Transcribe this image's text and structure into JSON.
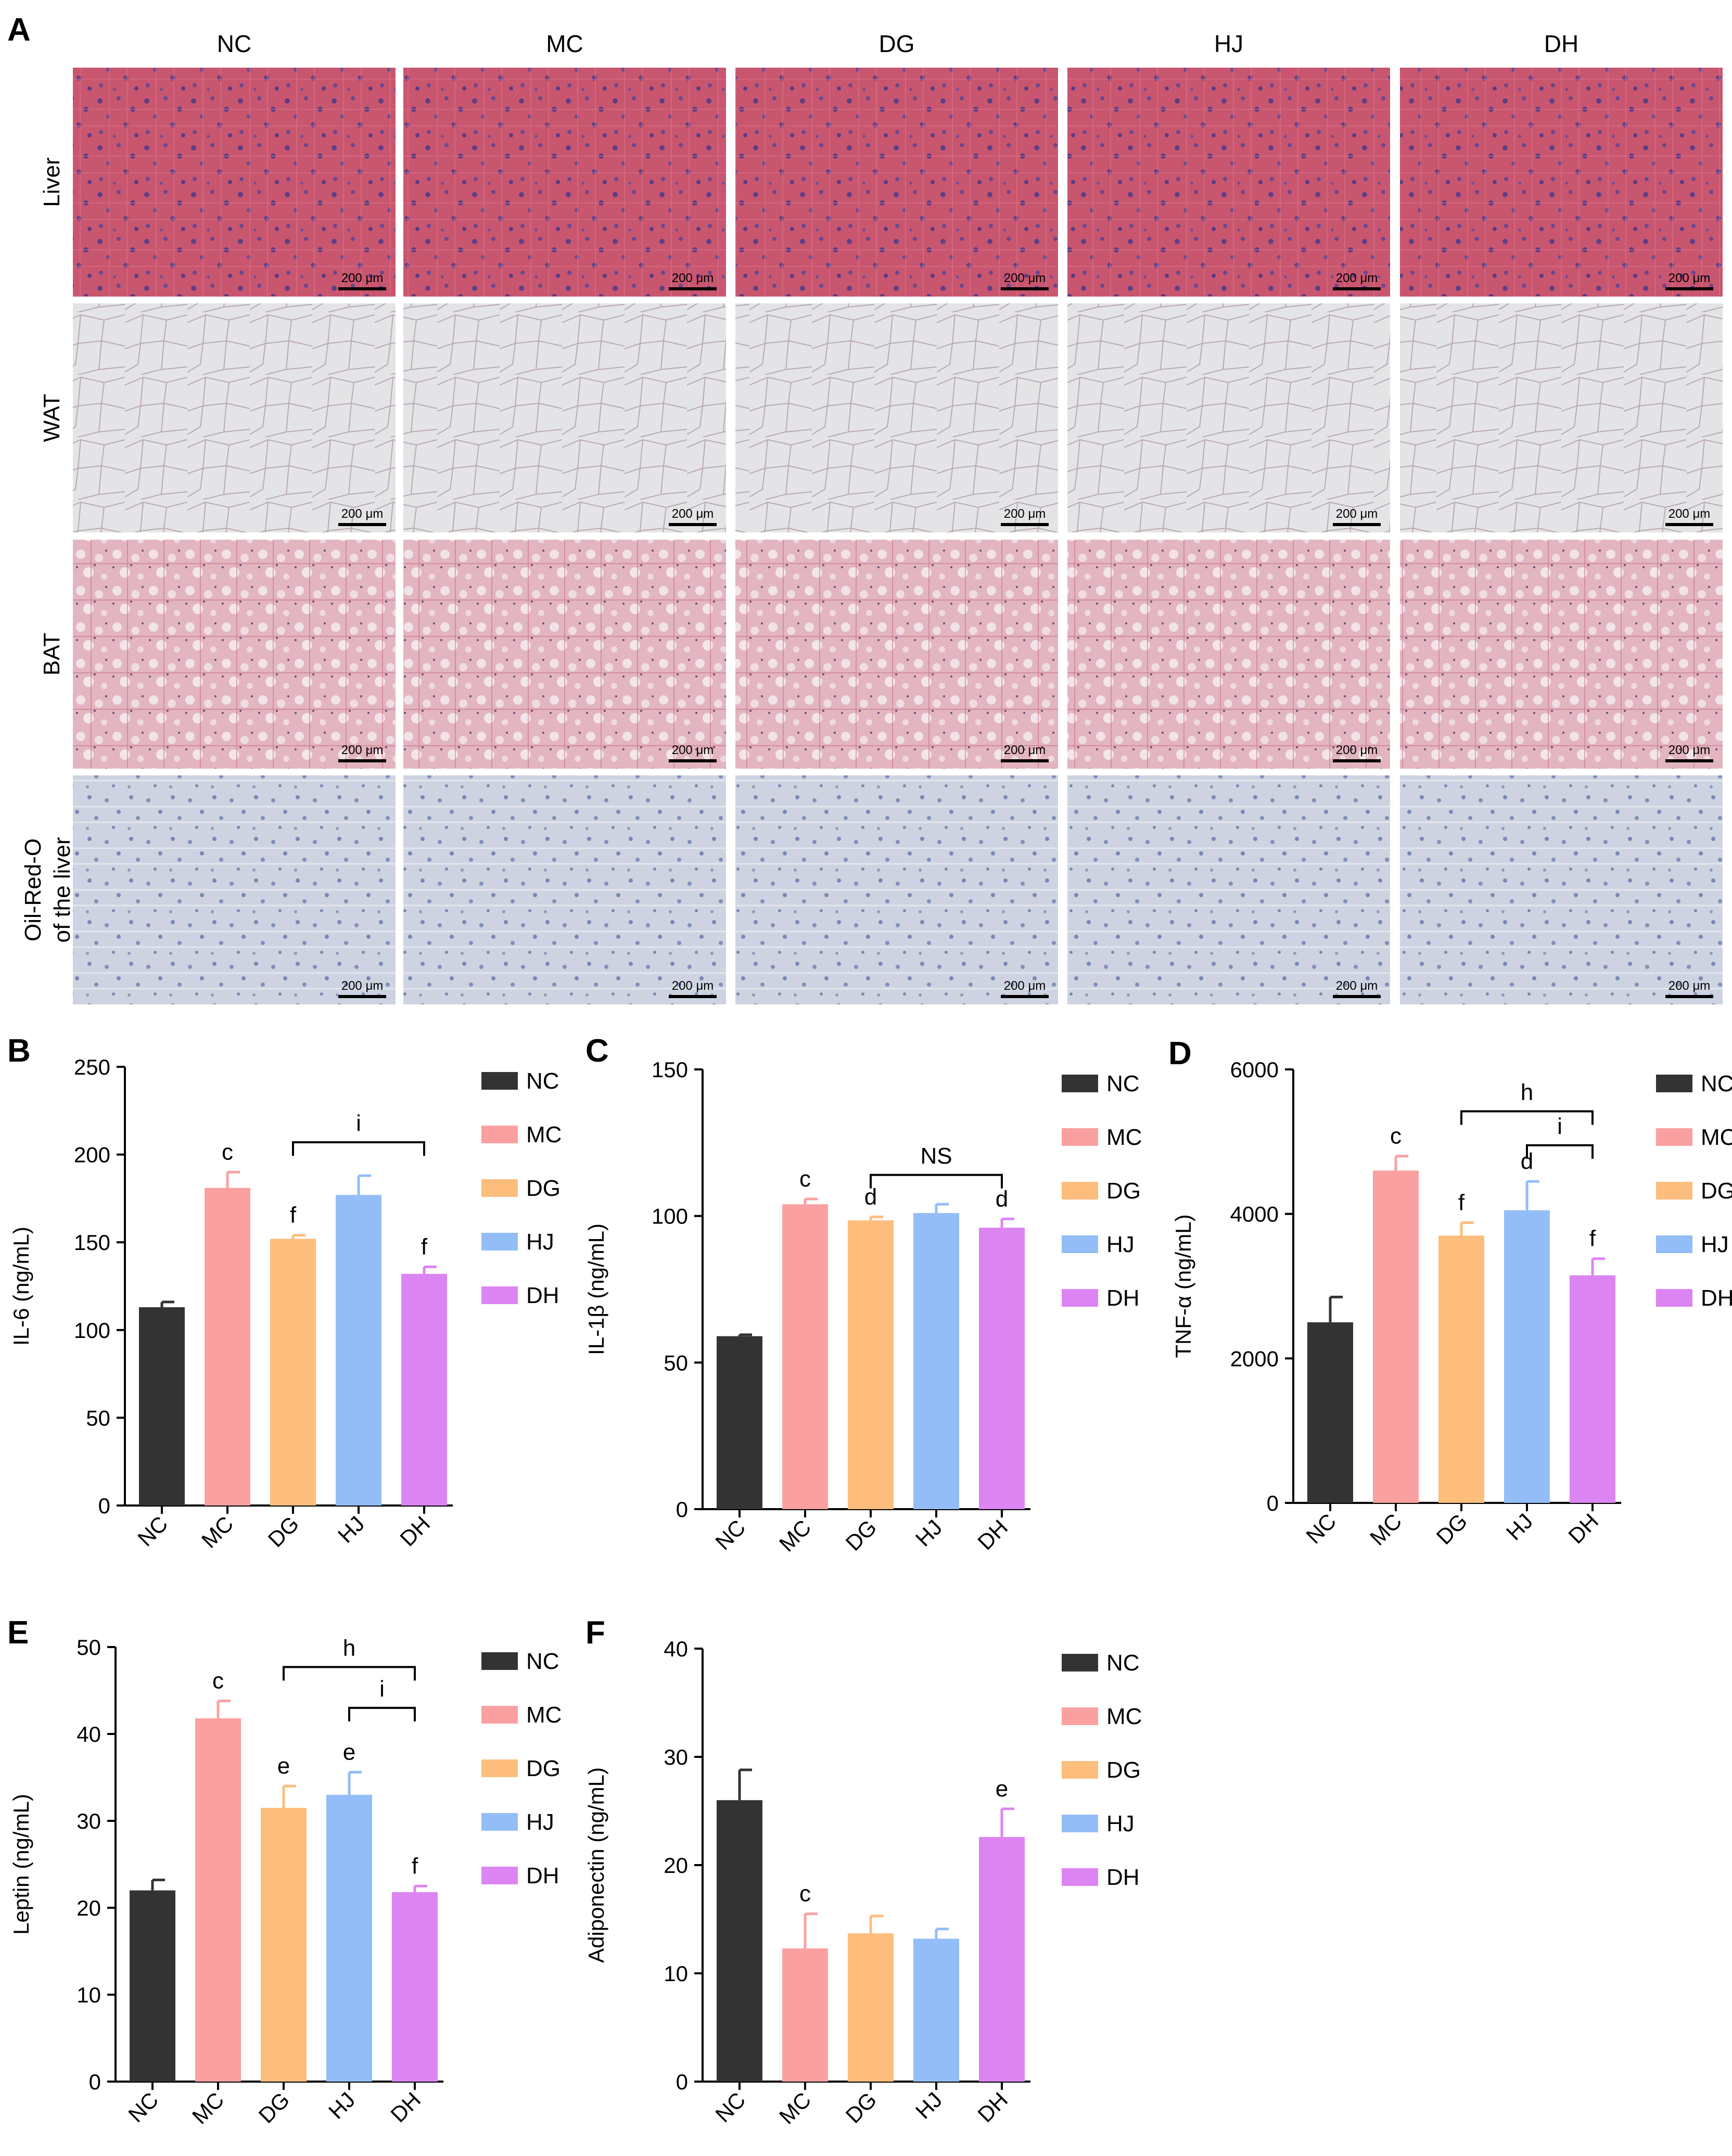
{
  "panel_a": {
    "letter": "A",
    "columns": [
      "NC",
      "MC",
      "DG",
      "HJ",
      "DH"
    ],
    "rows": [
      {
        "label": [
          "Liver"
        ],
        "stain": "he-liver"
      },
      {
        "label": [
          "WAT"
        ],
        "stain": "wat"
      },
      {
        "label": [
          "BAT"
        ],
        "stain": "bat"
      },
      {
        "label": [
          "Oil-Red-O",
          "of the liver"
        ],
        "stain": "oil-red"
      }
    ],
    "scale_bar_label": "200 μm"
  },
  "colors": {
    "NC": "#333333",
    "MC": "#fba0a0",
    "DG": "#fdbd7c",
    "HJ": "#93bdf7",
    "DH": "#dc84f2"
  },
  "chart_data": [
    {
      "panel": "B",
      "type": "bar",
      "categories": [
        "NC",
        "MC",
        "DG",
        "HJ",
        "DH"
      ],
      "values": [
        113,
        181,
        152,
        177,
        132
      ],
      "errors": [
        3,
        9,
        2,
        11,
        4
      ],
      "sig_labels": [
        "",
        "c",
        "f",
        "",
        "f"
      ],
      "brackets": [
        {
          "from": 2,
          "to": 4,
          "label": "i",
          "y": 207
        }
      ],
      "ylabel": "IL-6 (ng/mL)",
      "ylim": [
        0,
        250
      ],
      "yticks": [
        0,
        50,
        100,
        150,
        200,
        250
      ],
      "legend": [
        "NC",
        "MC",
        "DG",
        "HJ",
        "DH"
      ]
    },
    {
      "panel": "C",
      "type": "bar",
      "categories": [
        "NC",
        "MC",
        "DG",
        "HJ",
        "DH"
      ],
      "values": [
        59,
        104,
        98.5,
        101,
        96
      ],
      "errors": [
        0.5,
        1.8,
        1.2,
        3,
        3
      ],
      "sig_labels": [
        "",
        "c",
        "d",
        "",
        "d"
      ],
      "brackets": [
        {
          "from": 2,
          "to": 4,
          "label": "NS",
          "y": 114
        }
      ],
      "ylabel": "IL-1β (ng/mL)",
      "ylim": [
        0,
        150
      ],
      "yticks": [
        0,
        50,
        100,
        150
      ],
      "legend": [
        "NC",
        "MC",
        "DG",
        "HJ",
        "DH"
      ]
    },
    {
      "panel": "D",
      "type": "bar",
      "categories": [
        "NC",
        "MC",
        "DG",
        "HJ",
        "DH"
      ],
      "values": [
        2500,
        4600,
        3700,
        4050,
        3150
      ],
      "errors": [
        350,
        200,
        180,
        400,
        230
      ],
      "sig_labels": [
        "",
        "c",
        "f",
        "d",
        "f"
      ],
      "brackets": [
        {
          "from": 2,
          "to": 4,
          "label": "h",
          "y": 5420
        },
        {
          "from": 3,
          "to": 4,
          "label": "i",
          "y": 4950
        }
      ],
      "ylabel": "TNF-α (ng/mL)",
      "ylim": [
        0,
        6000
      ],
      "yticks": [
        0,
        2000,
        4000,
        6000
      ],
      "legend": [
        "NC",
        "MC",
        "DG",
        "HJ",
        "DH"
      ]
    },
    {
      "panel": "E",
      "type": "bar",
      "categories": [
        "NC",
        "MC",
        "DG",
        "HJ",
        "DH"
      ],
      "values": [
        22,
        41.8,
        31.5,
        33,
        21.8
      ],
      "errors": [
        1.2,
        2,
        2.5,
        2.6,
        0.7
      ],
      "sig_labels": [
        "",
        "c",
        "e",
        "e",
        "f"
      ],
      "brackets": [
        {
          "from": 2,
          "to": 4,
          "label": "h",
          "y": 47.7
        },
        {
          "from": 3,
          "to": 4,
          "label": "i",
          "y": 43
        }
      ],
      "ylabel": "Leptin (ng/mL)",
      "ylim": [
        0,
        50
      ],
      "yticks": [
        0,
        10,
        20,
        30,
        40,
        50
      ],
      "legend": [
        "NC",
        "MC",
        "DG",
        "HJ",
        "DH"
      ]
    },
    {
      "panel": "F",
      "type": "bar",
      "categories": [
        "NC",
        "MC",
        "DG",
        "HJ",
        "DH"
      ],
      "values": [
        26,
        12.3,
        13.7,
        13.2,
        22.6
      ],
      "errors": [
        2.8,
        3.2,
        1.6,
        0.9,
        2.6
      ],
      "sig_labels": [
        "",
        "c",
        "",
        "",
        "e"
      ],
      "brackets": [],
      "ylabel": "Adiponectin (ng/mL)",
      "ylim": [
        0,
        40
      ],
      "yticks": [
        0,
        10,
        20,
        30,
        40
      ],
      "legend": [
        "NC",
        "MC",
        "DG",
        "HJ",
        "DH"
      ]
    }
  ]
}
